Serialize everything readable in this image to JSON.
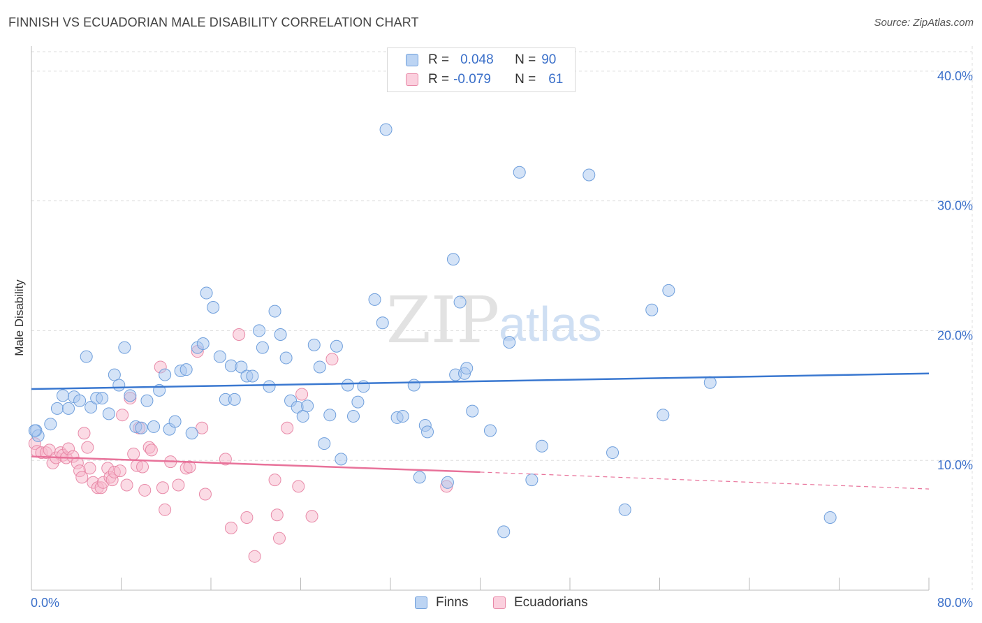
{
  "header": {
    "title": "FINNISH VS ECUADORIAN MALE DISABILITY CORRELATION CHART",
    "source": "Source: ZipAtlas.com"
  },
  "watermark": {
    "zip": "ZIP",
    "atlas": "atlas"
  },
  "legend": {
    "finns": {
      "r_label": "R =",
      "r_value": "0.048",
      "n_label": "N =",
      "n_value": "90"
    },
    "ecuadorians": {
      "r_label": "R =",
      "r_value": "-0.079",
      "n_label": "N =",
      "n_value": "61"
    }
  },
  "colors": {
    "finns_fill": "#a9c8f0",
    "finns_stroke": "#6f9fdc",
    "finns_line": "#3a78d0",
    "ecuadorians_fill": "#f7b8cc",
    "ecuadorians_stroke": "#e88aa8",
    "ecuadorians_line": "#e8729a",
    "tick_label": "#3a6fc9",
    "grid": "#dddddd"
  },
  "chart_data": {
    "type": "scatter",
    "title": "FINNISH VS ECUADORIAN MALE DISABILITY CORRELATION CHART",
    "xlabel": "",
    "ylabel": "Male Disability",
    "xlim": [
      0,
      80
    ],
    "ylim": [
      0,
      41.5
    ],
    "x_tick_labels": [
      "0.0%",
      "80.0%"
    ],
    "y_ticks": [
      10,
      20,
      30,
      40
    ],
    "y_tick_labels": [
      "10.0%",
      "20.0%",
      "30.0%",
      "40.0%"
    ],
    "grid": true,
    "legend_position": "bottom-center",
    "series": [
      {
        "name": "Finns",
        "r": 0.048,
        "n": 90,
        "trend": {
          "x0": 0,
          "y0": 15.5,
          "x1": 80,
          "y1": 16.7
        },
        "points": [
          [
            0.4,
            12.3
          ],
          [
            0.6,
            11.9
          ],
          [
            1.7,
            12.8
          ],
          [
            2.3,
            14.0
          ],
          [
            2.8,
            15.0
          ],
          [
            3.3,
            14.0
          ],
          [
            3.8,
            14.9
          ],
          [
            4.3,
            14.6
          ],
          [
            4.9,
            18.0
          ],
          [
            5.3,
            14.1
          ],
          [
            5.8,
            14.8
          ],
          [
            6.3,
            14.8
          ],
          [
            6.9,
            13.6
          ],
          [
            7.4,
            16.6
          ],
          [
            7.8,
            15.8
          ],
          [
            8.3,
            18.7
          ],
          [
            8.8,
            15.0
          ],
          [
            9.3,
            12.6
          ],
          [
            9.8,
            12.5
          ],
          [
            10.3,
            14.6
          ],
          [
            10.9,
            12.6
          ],
          [
            11.4,
            15.4
          ],
          [
            11.9,
            16.6
          ],
          [
            12.3,
            12.4
          ],
          [
            12.8,
            13.0
          ],
          [
            13.3,
            16.9
          ],
          [
            13.8,
            17.0
          ],
          [
            14.3,
            12.1
          ],
          [
            14.8,
            18.7
          ],
          [
            15.3,
            19.0
          ],
          [
            15.6,
            22.9
          ],
          [
            16.2,
            21.8
          ],
          [
            16.8,
            18.0
          ],
          [
            17.3,
            14.7
          ],
          [
            17.8,
            17.3
          ],
          [
            18.1,
            14.7
          ],
          [
            18.7,
            17.2
          ],
          [
            19.2,
            16.5
          ],
          [
            19.7,
            16.5
          ],
          [
            20.3,
            20.0
          ],
          [
            20.6,
            18.7
          ],
          [
            21.2,
            15.7
          ],
          [
            21.7,
            21.5
          ],
          [
            22.2,
            19.7
          ],
          [
            22.7,
            17.9
          ],
          [
            23.1,
            14.6
          ],
          [
            23.7,
            14.1
          ],
          [
            24.2,
            13.4
          ],
          [
            24.6,
            14.2
          ],
          [
            25.2,
            18.9
          ],
          [
            25.7,
            17.2
          ],
          [
            26.1,
            11.3
          ],
          [
            26.6,
            13.5
          ],
          [
            27.2,
            18.8
          ],
          [
            27.6,
            10.1
          ],
          [
            28.2,
            15.8
          ],
          [
            28.7,
            13.4
          ],
          [
            29.1,
            14.5
          ],
          [
            29.6,
            15.7
          ],
          [
            30.6,
            22.4
          ],
          [
            31.3,
            20.6
          ],
          [
            31.6,
            35.5
          ],
          [
            32.6,
            13.3
          ],
          [
            33.1,
            13.4
          ],
          [
            34.1,
            15.8
          ],
          [
            34.6,
            8.7
          ],
          [
            35.1,
            12.7
          ],
          [
            35.3,
            12.2
          ],
          [
            37.1,
            8.3
          ],
          [
            37.6,
            25.5
          ],
          [
            37.8,
            16.6
          ],
          [
            38.2,
            22.2
          ],
          [
            38.6,
            16.7
          ],
          [
            38.8,
            17.1
          ],
          [
            39.3,
            13.8
          ],
          [
            40.9,
            12.3
          ],
          [
            42.1,
            4.5
          ],
          [
            42.6,
            19.1
          ],
          [
            43.5,
            32.2
          ],
          [
            44.6,
            8.5
          ],
          [
            45.5,
            11.1
          ],
          [
            49.7,
            32.0
          ],
          [
            51.8,
            10.6
          ],
          [
            52.9,
            6.2
          ],
          [
            55.3,
            21.6
          ],
          [
            56.3,
            13.5
          ],
          [
            56.8,
            23.1
          ],
          [
            60.5,
            16.0
          ],
          [
            71.2,
            5.6
          ],
          [
            0.3,
            12.3
          ]
        ]
      },
      {
        "name": "Ecuadorians",
        "r": -0.079,
        "n": 61,
        "trend": {
          "x0": 0,
          "y0": 10.3,
          "x1": 40,
          "y1": 9.1,
          "dashed_x1": 80,
          "dashed_y1": 7.8
        },
        "points": [
          [
            0.3,
            11.3
          ],
          [
            0.5,
            10.7
          ],
          [
            0.9,
            10.6
          ],
          [
            1.3,
            10.6
          ],
          [
            1.6,
            10.8
          ],
          [
            1.9,
            9.8
          ],
          [
            2.2,
            10.2
          ],
          [
            2.6,
            10.6
          ],
          [
            2.8,
            10.4
          ],
          [
            3.1,
            10.2
          ],
          [
            3.3,
            10.9
          ],
          [
            3.7,
            10.3
          ],
          [
            4.1,
            9.8
          ],
          [
            4.3,
            9.2
          ],
          [
            4.5,
            8.7
          ],
          [
            4.7,
            12.1
          ],
          [
            5.0,
            11.0
          ],
          [
            5.2,
            9.4
          ],
          [
            5.5,
            8.3
          ],
          [
            5.9,
            7.9
          ],
          [
            6.2,
            7.9
          ],
          [
            6.4,
            8.3
          ],
          [
            6.8,
            9.4
          ],
          [
            7.0,
            8.7
          ],
          [
            7.2,
            8.5
          ],
          [
            7.4,
            9.1
          ],
          [
            7.9,
            9.2
          ],
          [
            8.1,
            13.5
          ],
          [
            8.5,
            8.1
          ],
          [
            8.8,
            14.8
          ],
          [
            9.1,
            10.5
          ],
          [
            9.4,
            9.6
          ],
          [
            9.6,
            12.5
          ],
          [
            9.9,
            9.5
          ],
          [
            10.1,
            7.7
          ],
          [
            10.5,
            11.0
          ],
          [
            10.7,
            10.8
          ],
          [
            11.5,
            17.2
          ],
          [
            11.7,
            7.9
          ],
          [
            11.9,
            6.2
          ],
          [
            12.4,
            9.9
          ],
          [
            13.1,
            8.1
          ],
          [
            13.8,
            9.4
          ],
          [
            14.1,
            9.5
          ],
          [
            14.8,
            18.4
          ],
          [
            15.2,
            12.5
          ],
          [
            15.5,
            7.4
          ],
          [
            17.3,
            10.1
          ],
          [
            17.8,
            4.8
          ],
          [
            18.5,
            19.7
          ],
          [
            19.2,
            5.6
          ],
          [
            19.9,
            2.6
          ],
          [
            21.7,
            8.5
          ],
          [
            21.9,
            5.8
          ],
          [
            22.1,
            4.0
          ],
          [
            22.8,
            12.5
          ],
          [
            23.8,
            8.0
          ],
          [
            24.1,
            15.1
          ],
          [
            25.0,
            5.7
          ],
          [
            26.8,
            17.8
          ],
          [
            37.0,
            8.0
          ]
        ]
      }
    ]
  }
}
